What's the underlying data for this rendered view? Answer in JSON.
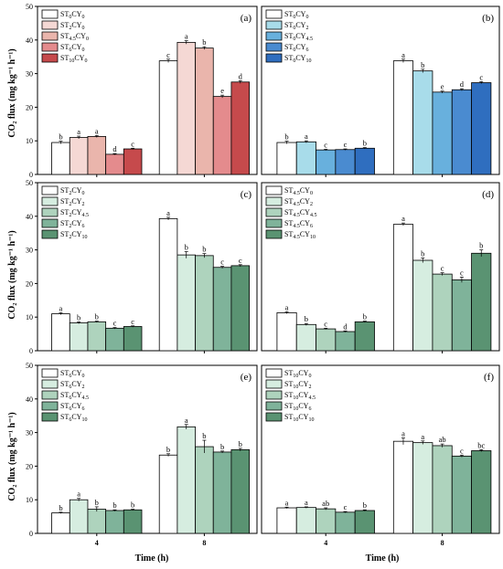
{
  "ylabel": "CO₂ flux (mg kg⁻¹ h⁻¹)",
  "xlabel": "Time (h)",
  "ylim": [
    0,
    50
  ],
  "yticks": [
    0,
    10,
    20,
    30,
    40,
    50
  ],
  "categories": [
    "4",
    "8"
  ],
  "chart_data": [
    {
      "type": "bar",
      "tag": "(a)",
      "categories": [
        "4",
        "8"
      ],
      "series": [
        {
          "name": "ST0CY0",
          "color": "#ffffff",
          "values": [
            9.5,
            33.8
          ],
          "errors": [
            0.4,
            0.5
          ],
          "letters": [
            "b",
            "c"
          ]
        },
        {
          "name": "ST2CY0",
          "color": "#f5d8d4",
          "values": [
            11.0,
            39.3
          ],
          "errors": [
            0.4,
            0.5
          ],
          "letters": [
            "a",
            "a"
          ]
        },
        {
          "name": "ST4.5CY0",
          "color": "#eab5ac",
          "values": [
            11.3,
            37.6
          ],
          "errors": [
            0.3,
            0.4
          ],
          "letters": [
            "a",
            "b"
          ]
        },
        {
          "name": "ST6CY0",
          "color": "#e48b8d",
          "values": [
            6.0,
            23.2
          ],
          "errors": [
            0.2,
            0.4
          ],
          "letters": [
            "d",
            "e"
          ]
        },
        {
          "name": "ST10CY0",
          "color": "#c64a4c",
          "values": [
            7.6,
            27.5
          ],
          "errors": [
            0.2,
            0.4
          ],
          "letters": [
            "c",
            "d"
          ]
        }
      ]
    },
    {
      "type": "bar",
      "tag": "(b)",
      "categories": [
        "4",
        "8"
      ],
      "series": [
        {
          "name": "ST0CY0",
          "color": "#ffffff",
          "values": [
            9.5,
            33.8
          ],
          "errors": [
            0.4,
            0.5
          ],
          "letters": [
            "b",
            "a"
          ]
        },
        {
          "name": "ST0CY2",
          "color": "#a8dcea",
          "values": [
            9.7,
            30.8
          ],
          "errors": [
            0.3,
            0.5
          ],
          "letters": [
            "a",
            "b"
          ]
        },
        {
          "name": "ST0CY4.5",
          "color": "#68b0dd",
          "values": [
            7.3,
            24.5
          ],
          "errors": [
            0.2,
            0.3
          ],
          "letters": [
            "c",
            "e"
          ]
        },
        {
          "name": "ST0CY6",
          "color": "#4a8bd0",
          "values": [
            7.4,
            25.2
          ],
          "errors": [
            0.2,
            0.3
          ],
          "letters": [
            "c",
            "d"
          ]
        },
        {
          "name": "ST0CY10",
          "color": "#2f6ebf",
          "values": [
            7.8,
            27.3
          ],
          "errors": [
            0.2,
            0.3
          ],
          "letters": [
            "b",
            "c"
          ]
        }
      ]
    },
    {
      "type": "bar",
      "tag": "(c)",
      "categories": [
        "4",
        "8"
      ],
      "series": [
        {
          "name": "ST2CY0",
          "color": "#ffffff",
          "values": [
            11.0,
            39.3
          ],
          "errors": [
            0.3,
            0.4
          ],
          "letters": [
            "a",
            "a"
          ]
        },
        {
          "name": "ST2CY2",
          "color": "#d6ede0",
          "values": [
            8.3,
            28.5
          ],
          "errors": [
            0.3,
            1.0
          ],
          "letters": [
            "b",
            "b"
          ]
        },
        {
          "name": "ST2CY4.5",
          "color": "#aed3bd",
          "values": [
            8.6,
            28.3
          ],
          "errors": [
            0.2,
            0.6
          ],
          "letters": [
            "b",
            "b"
          ]
        },
        {
          "name": "ST2CY6",
          "color": "#7fb39a",
          "values": [
            6.7,
            24.8
          ],
          "errors": [
            0.2,
            0.3
          ],
          "letters": [
            "c",
            "c"
          ]
        },
        {
          "name": "ST2CY10",
          "color": "#5a9372",
          "values": [
            7.2,
            25.3
          ],
          "errors": [
            0.2,
            0.3
          ],
          "letters": [
            "c",
            "c"
          ]
        }
      ]
    },
    {
      "type": "bar",
      "tag": "(d)",
      "categories": [
        "4",
        "8"
      ],
      "series": [
        {
          "name": "ST4.5CY0",
          "color": "#ffffff",
          "values": [
            11.3,
            37.6
          ],
          "errors": [
            0.3,
            0.4
          ],
          "letters": [
            "a",
            "a"
          ]
        },
        {
          "name": "ST4.5CY2",
          "color": "#d6ede0",
          "values": [
            7.8,
            26.9
          ],
          "errors": [
            0.3,
            0.7
          ],
          "letters": [
            "b",
            "b"
          ]
        },
        {
          "name": "ST4.5CY4.5",
          "color": "#aed3bd",
          "values": [
            6.5,
            22.8
          ],
          "errors": [
            0.2,
            0.4
          ],
          "letters": [
            "c",
            "c"
          ]
        },
        {
          "name": "ST4.5CY6",
          "color": "#7fb39a",
          "values": [
            5.7,
            21.1
          ],
          "errors": [
            0.2,
            0.8
          ],
          "letters": [
            "d",
            "c"
          ]
        },
        {
          "name": "ST4.5CY10",
          "color": "#5a9372",
          "values": [
            8.6,
            29.0
          ],
          "errors": [
            0.2,
            1.0
          ],
          "letters": [
            "b",
            "b"
          ]
        }
      ]
    },
    {
      "type": "bar",
      "tag": "(e)",
      "categories": [
        "4",
        "8"
      ],
      "series": [
        {
          "name": "ST6CY0",
          "color": "#ffffff",
          "values": [
            6.1,
            23.3
          ],
          "errors": [
            0.2,
            0.4
          ],
          "letters": [
            "b",
            "b"
          ]
        },
        {
          "name": "ST6CY2",
          "color": "#d6ede0",
          "values": [
            10.0,
            31.7
          ],
          "errors": [
            0.4,
            0.7
          ],
          "letters": [
            "a",
            "a"
          ]
        },
        {
          "name": "ST6CY4.5",
          "color": "#aed3bd",
          "values": [
            7.2,
            25.8
          ],
          "errors": [
            0.7,
            1.9
          ],
          "letters": [
            "b",
            "b"
          ]
        },
        {
          "name": "ST6CY6",
          "color": "#7fb39a",
          "values": [
            6.8,
            24.2
          ],
          "errors": [
            0.2,
            0.3
          ],
          "letters": [
            "b",
            "b"
          ]
        },
        {
          "name": "ST6CY10",
          "color": "#5a9372",
          "values": [
            7.0,
            24.9
          ],
          "errors": [
            0.2,
            0.4
          ],
          "letters": [
            "b",
            "b"
          ]
        }
      ]
    },
    {
      "type": "bar",
      "tag": "(f)",
      "categories": [
        "4",
        "8"
      ],
      "series": [
        {
          "name": "ST10CY0",
          "color": "#ffffff",
          "values": [
            7.6,
            27.4
          ],
          "errors": [
            0.2,
            1.0
          ],
          "letters": [
            "a",
            "a"
          ]
        },
        {
          "name": "ST10CY2",
          "color": "#d6ede0",
          "values": [
            7.7,
            27.0
          ],
          "errors": [
            0.2,
            0.5
          ],
          "letters": [
            "a",
            "a"
          ]
        },
        {
          "name": "ST10CY4.5",
          "color": "#aed3bd",
          "values": [
            7.3,
            26.1
          ],
          "errors": [
            0.3,
            0.5
          ],
          "letters": [
            "ab",
            "ab"
          ]
        },
        {
          "name": "ST10CY6",
          "color": "#7fb39a",
          "values": [
            6.3,
            23.0
          ],
          "errors": [
            0.2,
            0.3
          ],
          "letters": [
            "c",
            "c"
          ]
        },
        {
          "name": "ST10CY10",
          "color": "#5a9372",
          "values": [
            6.8,
            24.6
          ],
          "errors": [
            0.2,
            0.3
          ],
          "letters": [
            "b",
            "bc"
          ]
        }
      ]
    }
  ]
}
